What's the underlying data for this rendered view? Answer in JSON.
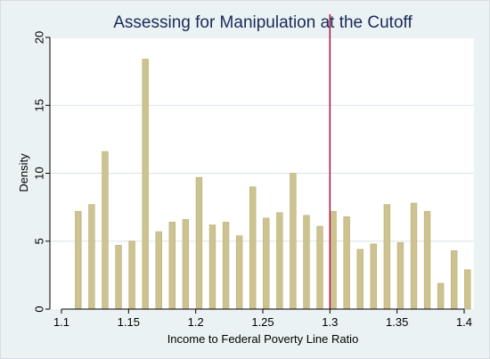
{
  "chart_data": {
    "type": "bar",
    "title": "Assessing for Manipulation at the Cutoff",
    "xlabel": "Income to Federal Poverty Line Ratio",
    "ylabel": "Density",
    "xlim": [
      1.1,
      1.4
    ],
    "ylim": [
      0,
      20
    ],
    "x_ticks": [
      1.1,
      1.15,
      1.2,
      1.25,
      1.3,
      1.35,
      1.4
    ],
    "x_tick_labels": [
      "1.1",
      "1.15",
      "1.2",
      "1.25",
      "1.3",
      "1.35",
      "1.4"
    ],
    "y_ticks": [
      0,
      5,
      10,
      15,
      20
    ],
    "y_tick_labels": [
      "0",
      "5",
      "10",
      "15",
      "20"
    ],
    "bin_width": 0.005,
    "bar_fill_fraction": 0.5,
    "x": [
      1.1125,
      1.1225,
      1.1325,
      1.1425,
      1.1525,
      1.1625,
      1.1725,
      1.1825,
      1.1925,
      1.2025,
      1.2125,
      1.2225,
      1.2325,
      1.2425,
      1.2525,
      1.2625,
      1.2725,
      1.2825,
      1.2925,
      1.3025,
      1.3125,
      1.3225,
      1.3325,
      1.3425,
      1.3525,
      1.3625,
      1.3725,
      1.3825,
      1.3925,
      1.4025
    ],
    "values": [
      7.2,
      7.7,
      11.6,
      4.7,
      5.0,
      18.4,
      5.7,
      6.4,
      6.6,
      9.7,
      6.2,
      6.4,
      5.4,
      9.0,
      6.7,
      7.1,
      10.0,
      6.9,
      6.1,
      7.2,
      6.8,
      4.4,
      4.8,
      7.7,
      4.9,
      7.8,
      7.2,
      1.9,
      4.3,
      2.9
    ],
    "cutoff": 1.3,
    "grid": "horizontal",
    "colors": {
      "bar": "#ccc390",
      "bar_stroke": "#b9ae76",
      "cutoff_line": "#b0103a",
      "grid": "#d8e4e8",
      "plot_background": "#ffffff",
      "outer_background": "#eaf2f3",
      "title": "#1a2a5a"
    }
  }
}
